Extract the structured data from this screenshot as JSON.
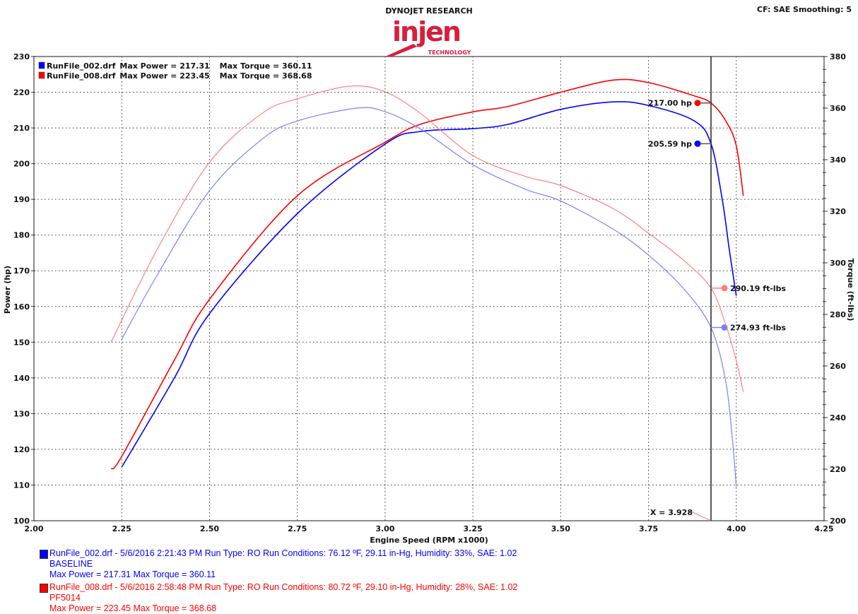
{
  "header": {
    "title": "DYNOJET RESEARCH",
    "logo_text": "injen TECHNOLOGY",
    "settings": "CF: SAE  Smoothing: 5"
  },
  "legend": [
    {
      "file": "RunFile_002.drf",
      "power": "Max Power = 217.31",
      "torque": "Max Torque = 360.11",
      "color": "#0000ff"
    },
    {
      "file": "RunFile_008.drf",
      "power": "Max Power = 223.45",
      "torque": "Max Torque = 368.68",
      "color": "#ff0000"
    }
  ],
  "cursor": {
    "label": "X = 3.928",
    "x": 3.928,
    "readouts": [
      {
        "text": "217.00 hp",
        "axis": "left",
        "value": 217.0,
        "color": "#ff0000"
      },
      {
        "text": "205.59 hp",
        "axis": "left",
        "value": 205.59,
        "color": "#0000ff"
      },
      {
        "text": "290.19 ft-lbs",
        "axis": "right",
        "value": 290.19,
        "color": "#ff7f7f"
      },
      {
        "text": "274.93 ft-lbs",
        "axis": "right",
        "value": 274.93,
        "color": "#7f7fff"
      }
    ]
  },
  "runs": [
    {
      "line1": "RunFile_002.drf - 5/6/2016 2:21:43 PM  Run Type: RO  Run Conditions: 76.12 ºF, 29.11 in-Hg,  Humidity:  33%, SAE: 1.02",
      "line2": "BASELINE",
      "line3": "Max Power = 217.31  Max Torque = 360.11",
      "color": "#0000ff"
    },
    {
      "line1": "RunFile_008.drf - 5/6/2016 2:58:48 PM  Run Type: RO  Run Conditions: 80.72 ºF, 29.10 in-Hg,  Humidity:  28%, SAE: 1.02",
      "line2": "PF5014",
      "line3": "Max Power = 223.45  Max Torque = 368.68",
      "color": "#ff0000"
    }
  ],
  "chart_data": {
    "type": "line",
    "xlabel": "Engine Speed (RPM x1000)",
    "ylabel": "Power (hp)",
    "y2label": "Torque (ft-lbs)",
    "xlim": [
      2.0,
      4.25
    ],
    "ylim": [
      100,
      230
    ],
    "y2lim": [
      200,
      380
    ],
    "xticks": [
      "2.00",
      "2.25",
      "2.50",
      "2.75",
      "3.00",
      "3.25",
      "3.50",
      "3.75",
      "4.00",
      "4.25"
    ],
    "yticks": [
      "100",
      "110",
      "120",
      "130",
      "140",
      "150",
      "160",
      "170",
      "180",
      "190",
      "200",
      "210",
      "220",
      "230"
    ],
    "y2ticks": [
      "200",
      "220",
      "240",
      "260",
      "280",
      "300",
      "320",
      "340",
      "360",
      "380"
    ],
    "grid": true,
    "series": [
      {
        "name": "RunFile_002.drf Power",
        "axis": "left",
        "color": "#0000ff",
        "points": [
          [
            2.25,
            115
          ],
          [
            2.4,
            140
          ],
          [
            2.5,
            158
          ],
          [
            2.75,
            186
          ],
          [
            3.0,
            205.5
          ],
          [
            3.1,
            209
          ],
          [
            3.25,
            209.8
          ],
          [
            3.35,
            211
          ],
          [
            3.5,
            215.2
          ],
          [
            3.65,
            217.3
          ],
          [
            3.75,
            216.3
          ],
          [
            3.88,
            212
          ],
          [
            3.928,
            205.6
          ],
          [
            3.96,
            190
          ],
          [
            3.98,
            176
          ],
          [
            4.0,
            163
          ]
        ]
      },
      {
        "name": "RunFile_008.drf Power",
        "axis": "left",
        "color": "#ff0000",
        "points": [
          [
            2.22,
            114.5
          ],
          [
            2.25,
            118
          ],
          [
            2.4,
            145
          ],
          [
            2.5,
            162
          ],
          [
            2.75,
            191
          ],
          [
            3.0,
            206
          ],
          [
            3.1,
            211
          ],
          [
            3.25,
            214.5
          ],
          [
            3.35,
            216
          ],
          [
            3.5,
            220
          ],
          [
            3.65,
            223.4
          ],
          [
            3.75,
            222.7
          ],
          [
            3.88,
            219
          ],
          [
            3.928,
            217
          ],
          [
            3.97,
            212
          ],
          [
            4.0,
            205
          ],
          [
            4.02,
            191
          ]
        ]
      },
      {
        "name": "RunFile_002.drf Torque",
        "axis": "right",
        "color": "#7f7fff",
        "points": [
          [
            2.25,
            270.4
          ],
          [
            2.35,
            295
          ],
          [
            2.5,
            328
          ],
          [
            2.65,
            348
          ],
          [
            2.75,
            355
          ],
          [
            2.92,
            360
          ],
          [
            3.0,
            358.6
          ],
          [
            3.1,
            352
          ],
          [
            3.25,
            338
          ],
          [
            3.4,
            328.5
          ],
          [
            3.5,
            324
          ],
          [
            3.65,
            313
          ],
          [
            3.75,
            303
          ],
          [
            3.85,
            290
          ],
          [
            3.928,
            274.9
          ],
          [
            3.97,
            254
          ],
          [
            3.99,
            230
          ],
          [
            4.0,
            213
          ]
        ]
      },
      {
        "name": "RunFile_008.drf Torque",
        "axis": "right",
        "color": "#ff7f7f",
        "points": [
          [
            2.22,
            269.3
          ],
          [
            2.35,
            305
          ],
          [
            2.5,
            339
          ],
          [
            2.65,
            358
          ],
          [
            2.75,
            363.6
          ],
          [
            2.9,
            368.5
          ],
          [
            3.0,
            366.3
          ],
          [
            3.1,
            358
          ],
          [
            3.25,
            341.6
          ],
          [
            3.4,
            333.5
          ],
          [
            3.5,
            330
          ],
          [
            3.65,
            321
          ],
          [
            3.75,
            311.5
          ],
          [
            3.85,
            301
          ],
          [
            3.928,
            290.2
          ],
          [
            3.97,
            276
          ],
          [
            4.0,
            262
          ],
          [
            4.02,
            250
          ]
        ]
      }
    ]
  }
}
